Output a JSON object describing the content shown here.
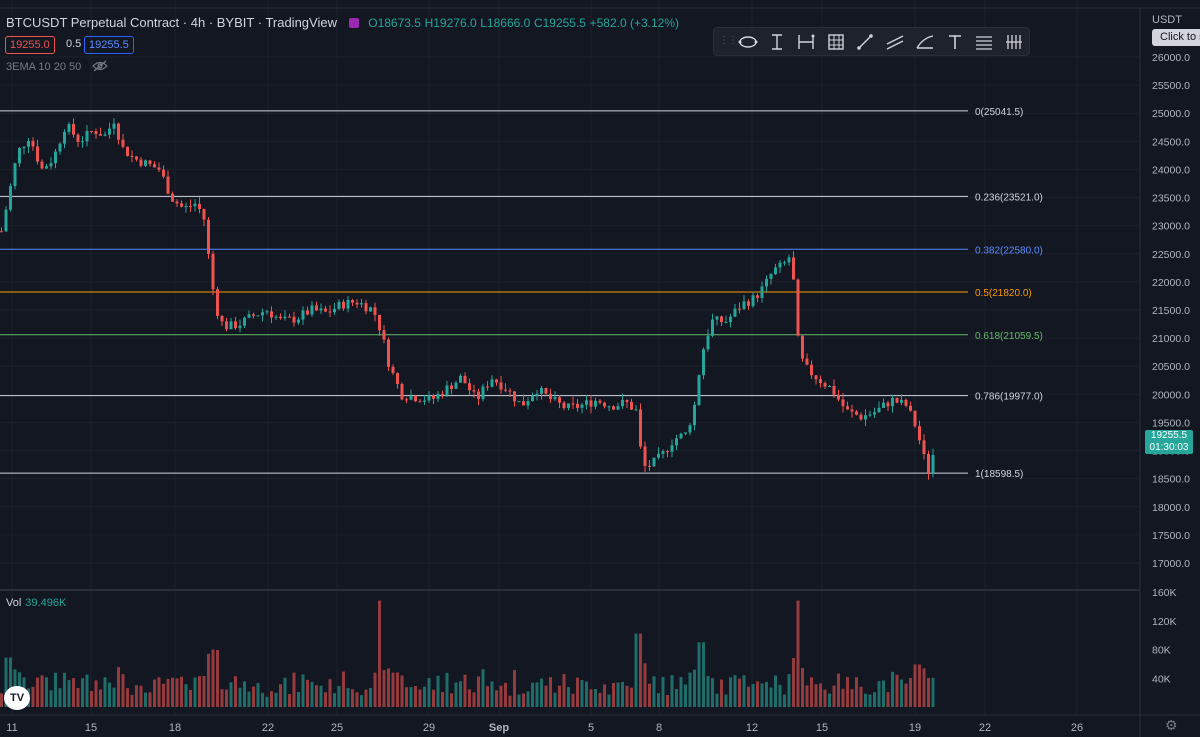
{
  "header": {
    "symbol": "BTCUSDT Perpetual Contract",
    "interval": "4h",
    "exchange": "BYBIT",
    "source": "TradingView",
    "open": "O18673.5",
    "high": "H19276.0",
    "low": "L18666.0",
    "close": "C19255.5",
    "change": "+582.0 (+3.12%)",
    "bid": "19255.0",
    "spread": "0.5",
    "ask": "19255.5",
    "indicator": "3EMA 10 20 50"
  },
  "toolbar": {
    "tools": [
      "lasso-icon",
      "text-cursor-icon",
      "range-icon",
      "grid-icon",
      "trend-line-icon",
      "parallel-channel-icon",
      "pitchfork-icon",
      "text-icon",
      "lines-icon",
      "measure-icon"
    ]
  },
  "price_axis": {
    "currency": "USDT",
    "tooltip": "Click to s",
    "last_price": "19255.5",
    "countdown": "01:30:03"
  },
  "volume": {
    "label": "Vol",
    "value": "39.496K"
  },
  "colors": {
    "up": "#26a69a",
    "down": "#ef5350",
    "background": "#131722",
    "fib_0": "#d1d4dc",
    "fib_0236": "#d1d4dc",
    "fib_0382": "#2962ff",
    "fib_05": "#ff9800",
    "fib_0618": "#4caf50",
    "fib_0786": "#d1d4dc",
    "fib_1": "#d1d4dc"
  },
  "chart_data": {
    "type": "candlestick",
    "ylim": [
      16500,
      26500
    ],
    "y_ticks": [
      17000,
      17500,
      18000,
      18500,
      19000,
      19500,
      20000,
      20500,
      21000,
      21500,
      22000,
      22500,
      23000,
      23500,
      24000,
      24500,
      25000,
      25500,
      26000
    ],
    "y_tick_labels": [
      "17000.0",
      "17500.0",
      "18000.0",
      "18500.0",
      "19000.0",
      "19500.0",
      "20000.0",
      "20500.0",
      "21000.0",
      "21500.0",
      "22000.0",
      "22500.0",
      "23000.0",
      "23500.0",
      "24000.0",
      "24500.0",
      "25000.0",
      "25500.0",
      "26000.0"
    ],
    "x_ticks": [
      "11",
      "15",
      "18",
      "22",
      "25",
      "29",
      "Sep",
      "5",
      "8",
      "12",
      "15",
      "19",
      "22",
      "26"
    ],
    "fib_levels": [
      {
        "label": "0(25041.5)",
        "value": 25041.5,
        "color": "#d1d4dc"
      },
      {
        "label": "0.236(23521.0)",
        "value": 23521.0,
        "color": "#d1d4dc"
      },
      {
        "label": "0.382(22580.0)",
        "value": 22580.0,
        "color": "#5b8cff"
      },
      {
        "label": "0.5(21820.0)",
        "value": 21820.0,
        "color": "#ff9800"
      },
      {
        "label": "0.618(21059.5)",
        "value": 21059.5,
        "color": "#66bb6a"
      },
      {
        "label": "0.786(19977.0)",
        "value": 19977.0,
        "color": "#d1d4dc"
      },
      {
        "label": "1(18598.5)",
        "value": 18598.5,
        "color": "#d1d4dc"
      }
    ],
    "price_path": [
      [
        0,
        22900
      ],
      [
        8,
        23600
      ],
      [
        16,
        24300
      ],
      [
        28,
        24600
      ],
      [
        40,
        24000
      ],
      [
        52,
        24200
      ],
      [
        64,
        24800
      ],
      [
        78,
        24500
      ],
      [
        92,
        24700
      ],
      [
        104,
        24600
      ],
      [
        113,
        24900
      ],
      [
        120,
        24400
      ],
      [
        132,
        24200
      ],
      [
        145,
        24100
      ],
      [
        158,
        24000
      ],
      [
        170,
        23500
      ],
      [
        182,
        23300
      ],
      [
        195,
        23400
      ],
      [
        203,
        23100
      ],
      [
        210,
        22000
      ],
      [
        218,
        21300
      ],
      [
        226,
        21200
      ],
      [
        238,
        21250
      ],
      [
        252,
        21400
      ],
      [
        265,
        21500
      ],
      [
        280,
        21300
      ],
      [
        295,
        21350
      ],
      [
        310,
        21500
      ],
      [
        325,
        21450
      ],
      [
        340,
        21600
      ],
      [
        355,
        21650
      ],
      [
        372,
        21500
      ],
      [
        380,
        21100
      ],
      [
        388,
        20500
      ],
      [
        400,
        20000
      ],
      [
        415,
        19950
      ],
      [
        430,
        19900
      ],
      [
        445,
        20100
      ],
      [
        460,
        20300
      ],
      [
        475,
        19900
      ],
      [
        490,
        20300
      ],
      [
        505,
        20100
      ],
      [
        520,
        19800
      ],
      [
        535,
        20100
      ],
      [
        550,
        19900
      ],
      [
        565,
        19750
      ],
      [
        580,
        19800
      ],
      [
        595,
        19900
      ],
      [
        610,
        19800
      ],
      [
        625,
        19850
      ],
      [
        635,
        19700
      ],
      [
        641,
        18700
      ],
      [
        650,
        18750
      ],
      [
        660,
        18900
      ],
      [
        672,
        19200
      ],
      [
        685,
        19300
      ],
      [
        693,
        19800
      ],
      [
        700,
        20700
      ],
      [
        710,
        21300
      ],
      [
        725,
        21300
      ],
      [
        740,
        21600
      ],
      [
        752,
        21700
      ],
      [
        762,
        21900
      ],
      [
        772,
        22200
      ],
      [
        782,
        22300
      ],
      [
        790,
        22500
      ],
      [
        796,
        21000
      ],
      [
        802,
        20500
      ],
      [
        815,
        20300
      ],
      [
        830,
        20100
      ],
      [
        845,
        19700
      ],
      [
        860,
        19600
      ],
      [
        875,
        19700
      ],
      [
        890,
        19900
      ],
      [
        905,
        19800
      ],
      [
        915,
        19400
      ],
      [
        922,
        18900
      ],
      [
        928,
        18600
      ],
      [
        935,
        19255
      ]
    ],
    "volume_unit": "K",
    "volume_ticks": [
      "40K",
      "80K",
      "120K",
      "160K"
    ],
    "volume_spikes": [
      {
        "x": 379,
        "value": 148
      },
      {
        "x": 637,
        "value": 102
      },
      {
        "x": 795,
        "value": 148
      },
      {
        "x": 210,
        "value": 80
      },
      {
        "x": 700,
        "value": 90
      }
    ]
  }
}
